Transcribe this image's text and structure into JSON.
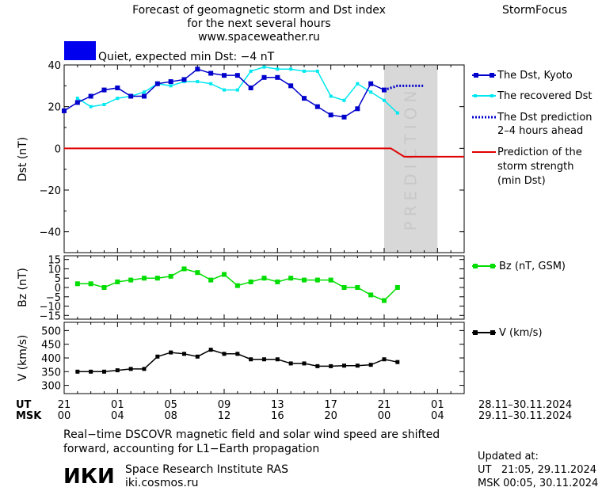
{
  "header": {
    "title_line1": "Forecast of geomagnetic storm and Dst index",
    "title_line2": "for the next several hours",
    "title_line3": "www.spaceweather.ru",
    "brand": "StormFocus"
  },
  "status": {
    "swatch_color": "#0000ee",
    "text": "Quiet, expected min Dst: −4 nT"
  },
  "time_axis": {
    "ut_label": "UT",
    "msk_label": "MSK",
    "ut_ticks": [
      "21",
      "01",
      "05",
      "09",
      "13",
      "17",
      "21",
      "01"
    ],
    "msk_ticks": [
      "00",
      "04",
      "08",
      "12",
      "16",
      "20",
      "00",
      "04"
    ],
    "ut_range": "28.11–30.11.2024",
    "msk_range": "29.11–30.11.2024"
  },
  "colors": {
    "dst_kyoto": "#0000cc",
    "dst_recovered": "#00e8f0",
    "dst_prediction": "#0000cc",
    "storm_strength": "#e00000",
    "bz": "#00dd00",
    "v": "#000000",
    "prediction_zone": "#d8d8d8",
    "prediction_text": "#c8c8c8"
  },
  "chart_data": [
    {
      "type": "line",
      "panel": "dst",
      "ylabel": "Dst (nT)",
      "ylim": [
        -50,
        40
      ],
      "yticks": [
        40,
        20,
        0,
        -20,
        -40
      ],
      "ytick_labels": [
        "40",
        "20",
        "0",
        "−20",
        "−40"
      ],
      "x_unit": "hours from 21 UT 28.11",
      "xlim": [
        0,
        30
      ],
      "prediction_zone": {
        "x_from": 24,
        "x_to": 28,
        "label": "PREDICTION"
      },
      "series": [
        {
          "name": "The Dst, Kyoto",
          "x": [
            0,
            1,
            2,
            3,
            4,
            5,
            6,
            7,
            8,
            9,
            10,
            11,
            12,
            13,
            14,
            15,
            16,
            17,
            18,
            19,
            20,
            21,
            22,
            23,
            24
          ],
          "values": [
            18,
            22,
            25,
            28,
            29,
            25,
            25,
            31,
            32,
            33,
            38,
            36,
            35,
            35,
            29,
            34,
            34,
            30,
            24,
            20,
            16,
            15,
            19,
            31,
            28
          ]
        },
        {
          "name": "The recovered Dst",
          "x": [
            1,
            2,
            3,
            4,
            5,
            6,
            7,
            8,
            9,
            10,
            11,
            12,
            13,
            14,
            15,
            16,
            17,
            18,
            19,
            20,
            21,
            22,
            23,
            24,
            25
          ],
          "values": [
            24,
            20,
            21,
            24,
            25,
            27,
            31,
            30,
            32,
            32,
            31,
            28,
            28,
            37,
            39,
            38,
            38,
            37,
            37,
            25,
            23,
            31,
            27,
            23,
            17
          ]
        },
        {
          "name": "The Dst prediction",
          "name_line2": "2–4 hours ahead",
          "x": [
            24,
            25,
            26,
            27
          ],
          "values": [
            28,
            30,
            30,
            30
          ]
        },
        {
          "name": "Prediction of the",
          "name_line2": "storm strength",
          "name_line3": "(min Dst)",
          "x": [
            0,
            24.5,
            25.5,
            30
          ],
          "values": [
            0,
            0,
            -4,
            -4
          ]
        }
      ]
    },
    {
      "type": "line",
      "panel": "bz",
      "ylabel": "Bz (nT)",
      "ylim": [
        -17,
        17
      ],
      "yticks": [
        15,
        10,
        5,
        0,
        -5,
        -10,
        -15
      ],
      "ytick_labels": [
        "15",
        "10",
        "5",
        "0",
        "−5",
        "−10",
        "−15"
      ],
      "xlim": [
        0,
        30
      ],
      "series": [
        {
          "name": "Bz (nT, GSM)",
          "x": [
            1,
            2,
            3,
            4,
            5,
            6,
            7,
            8,
            9,
            10,
            11,
            12,
            13,
            14,
            15,
            16,
            17,
            18,
            19,
            20,
            21,
            22,
            23,
            24,
            25
          ],
          "values": [
            2,
            2,
            0,
            3,
            4,
            5,
            5,
            6,
            10,
            8,
            4,
            7,
            1,
            3,
            5,
            3,
            5,
            4,
            4,
            4,
            0,
            0,
            -4,
            -7,
            0
          ]
        }
      ]
    },
    {
      "type": "line",
      "panel": "v",
      "ylabel": "V (km/s)",
      "ylim": [
        270,
        530
      ],
      "yticks": [
        500,
        450,
        400,
        350,
        300
      ],
      "ytick_labels": [
        "500",
        "450",
        "400",
        "350",
        "300"
      ],
      "xlim": [
        0,
        30
      ],
      "series": [
        {
          "name": "V (km/s)",
          "x": [
            1,
            2,
            3,
            4,
            5,
            6,
            7,
            8,
            9,
            10,
            11,
            12,
            13,
            14,
            15,
            16,
            17,
            18,
            19,
            20,
            21,
            22,
            23,
            24,
            25
          ],
          "values": [
            350,
            350,
            350,
            355,
            360,
            360,
            405,
            420,
            415,
            405,
            430,
            415,
            415,
            395,
            395,
            395,
            380,
            380,
            370,
            370,
            372,
            372,
            375,
            395,
            385
          ]
        }
      ]
    }
  ],
  "footer": {
    "note_line1": "Real−time DSCOVR magnetic field and solar wind speed are shifted",
    "note_line2": "forward, accounting for L1−Earth propagation",
    "logo_text": "ИКИ",
    "institute": "Space Research Institute RAS",
    "site": "iki.cosmos.ru",
    "updated_label": "Updated at:",
    "updated_ut": "UT   21:05, 29.11.2024",
    "updated_msk": "MSK 00:05, 30.11.2024"
  }
}
